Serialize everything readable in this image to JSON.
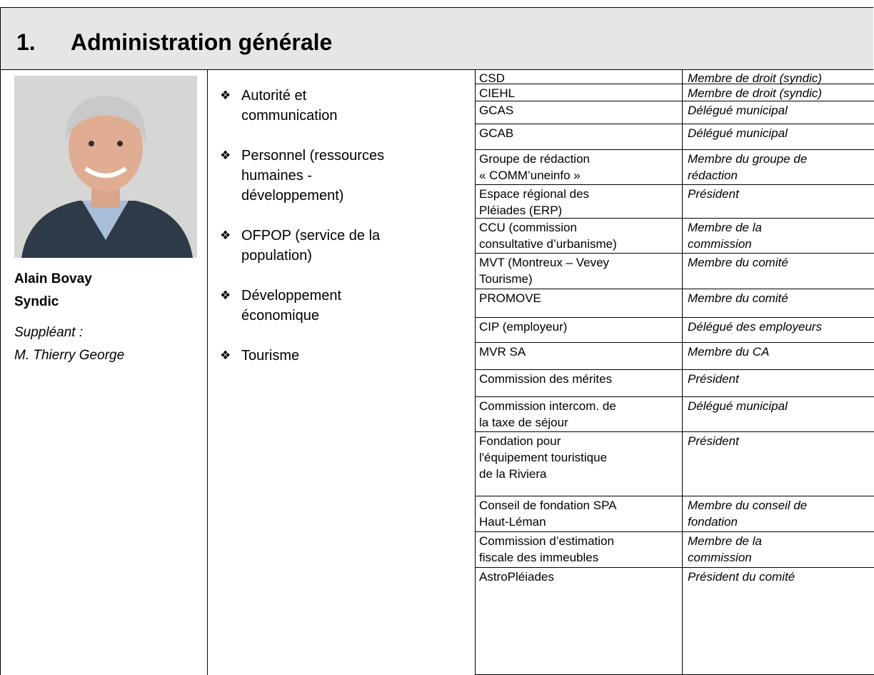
{
  "header": {
    "number": "1.",
    "title": "Administration générale"
  },
  "person": {
    "name": "Alain Bovay",
    "role": "Syndic",
    "substitute_label": "Suppléant :",
    "substitute": "M. Thierry George"
  },
  "responsibilities": [
    [
      "Autorité et",
      "communication"
    ],
    [
      "Personnel (ressources",
      "humaines -",
      "développement)"
    ],
    [
      "OFPOP (service de la",
      "population)"
    ],
    [
      "Développement",
      "économique"
    ],
    [
      "Tourisme"
    ]
  ],
  "table": {
    "rows": [
      [
        [
          "CSD"
        ],
        [
          "Membre de droit (syndic)"
        ]
      ],
      [
        [
          "CIEHL"
        ],
        [
          "Membre de droit  (syndic)"
        ]
      ],
      [
        [
          "GCAS"
        ],
        [
          "Délégué municipal"
        ]
      ],
      [
        [
          "GCAB"
        ],
        [
          "Délégué municipal"
        ]
      ],
      [
        [
          "Groupe de rédaction",
          "« COMM’uneinfo »"
        ],
        [
          "Membre du groupe de",
          "rédaction"
        ]
      ],
      [
        [
          "Espace régional des",
          "Pléiades (ERP)"
        ],
        [
          "Président"
        ]
      ],
      [
        [
          "CCU (commission",
          "consultative d’urbanisme)"
        ],
        [
          "Membre de la",
          "commission"
        ]
      ],
      [
        [
          "MVT (Montreux – Vevey",
          "Tourisme)"
        ],
        [
          "Membre du comité"
        ]
      ],
      [
        [
          "PROMOVE"
        ],
        [
          "Membre du comité"
        ]
      ],
      [
        [
          "CIP (employeur)"
        ],
        [
          "Délégué des employeurs"
        ]
      ],
      [
        [
          "MVR SA"
        ],
        [
          "Membre du CA"
        ]
      ],
      [
        [
          "Commission des mérites"
        ],
        [
          "Président"
        ]
      ],
      [
        [
          "Commission intercom. de",
          "la taxe de séjour"
        ],
        [
          "Délégué municipal"
        ]
      ],
      [
        [
          "Fondation pour",
          "l'équipement touristique",
          "de la Riviera"
        ],
        [
          "Président"
        ]
      ],
      [
        [
          "Conseil de fondation SPA",
          "Haut-Léman"
        ],
        [
          "Membre du conseil de",
          "fondation"
        ]
      ],
      [
        [
          "Commission d’estimation",
          "fiscale des immeubles"
        ],
        [
          "Membre de la",
          "commission"
        ]
      ],
      [
        [
          "AstroPléiades"
        ],
        [
          "Président du comité"
        ]
      ]
    ]
  }
}
